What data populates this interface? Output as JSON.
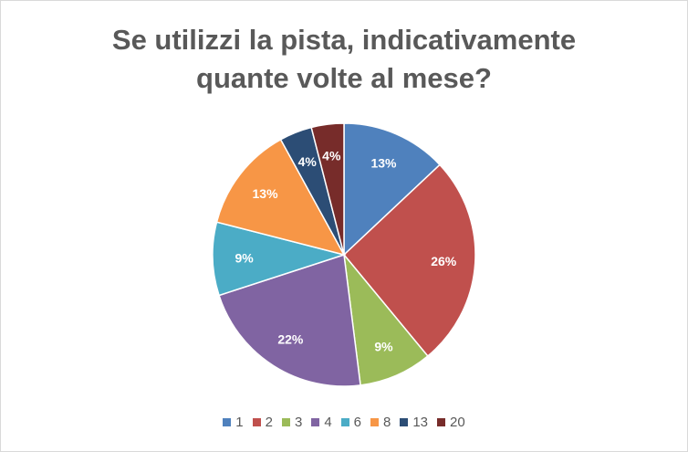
{
  "chart_data": {
    "type": "pie",
    "title_lines": [
      "Se utilizzi la pista, indicativamente",
      "quante volte al mese?"
    ],
    "categories": [
      "1",
      "2",
      "3",
      "4",
      "6",
      "8",
      "13",
      "20"
    ],
    "values": [
      13,
      26,
      9,
      22,
      9,
      13,
      4,
      4
    ],
    "labels": [
      "13%",
      "26%",
      "9%",
      "22%",
      "9%",
      "13%",
      "4%",
      "4%"
    ],
    "colors": [
      "#4f81bd",
      "#c0504d",
      "#9bbb59",
      "#8064a2",
      "#4bacc6",
      "#f79646",
      "#2c4d75",
      "#772c2a"
    ],
    "legend_position": "bottom"
  }
}
